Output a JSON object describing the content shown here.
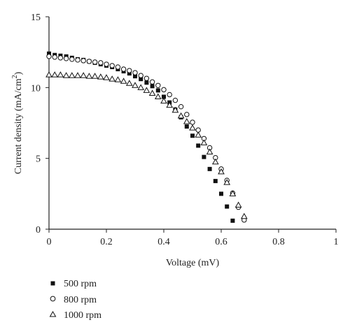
{
  "chart_data": {
    "type": "scatter",
    "xlabel": "Voltage (mV)",
    "ylabel": "Current density (mA/cm",
    "ylabel_sup": "2",
    "ylabel_close": ")",
    "xlim": [
      0,
      1
    ],
    "ylim": [
      0,
      15
    ],
    "xticks": [
      "0",
      "0.2",
      "0.4",
      "0.6",
      "0.8",
      "1"
    ],
    "xtick_values": [
      0,
      0.2,
      0.4,
      0.6,
      0.8,
      1
    ],
    "yticks": [
      "0",
      "5",
      "10",
      "15"
    ],
    "ytick_values": [
      0,
      5,
      10,
      15
    ],
    "grid": false,
    "legend_position": "bottom-left",
    "series": [
      {
        "name": "500 rpm",
        "marker": "filled-square",
        "points": [
          [
            0.0,
            12.4
          ],
          [
            0.02,
            12.3
          ],
          [
            0.04,
            12.25
          ],
          [
            0.06,
            12.2
          ],
          [
            0.08,
            12.1
          ],
          [
            0.1,
            12.0
          ],
          [
            0.12,
            11.95
          ],
          [
            0.14,
            11.85
          ],
          [
            0.16,
            11.75
          ],
          [
            0.18,
            11.65
          ],
          [
            0.2,
            11.55
          ],
          [
            0.22,
            11.45
          ],
          [
            0.24,
            11.3
          ],
          [
            0.26,
            11.15
          ],
          [
            0.28,
            11.0
          ],
          [
            0.3,
            10.8
          ],
          [
            0.32,
            10.6
          ],
          [
            0.34,
            10.35
          ],
          [
            0.36,
            10.1
          ],
          [
            0.38,
            9.8
          ],
          [
            0.4,
            9.35
          ],
          [
            0.42,
            8.95
          ],
          [
            0.44,
            8.45
          ],
          [
            0.46,
            7.9
          ],
          [
            0.48,
            7.25
          ],
          [
            0.5,
            6.6
          ],
          [
            0.52,
            5.9
          ],
          [
            0.54,
            5.1
          ],
          [
            0.56,
            4.25
          ],
          [
            0.58,
            3.4
          ],
          [
            0.6,
            2.5
          ],
          [
            0.62,
            1.6
          ],
          [
            0.64,
            0.6
          ]
        ]
      },
      {
        "name": "800 rpm",
        "marker": "open-circle",
        "points": [
          [
            0.0,
            12.2
          ],
          [
            0.02,
            12.15
          ],
          [
            0.04,
            12.1
          ],
          [
            0.06,
            12.05
          ],
          [
            0.08,
            12.0
          ],
          [
            0.1,
            11.95
          ],
          [
            0.12,
            11.9
          ],
          [
            0.14,
            11.85
          ],
          [
            0.16,
            11.8
          ],
          [
            0.18,
            11.75
          ],
          [
            0.2,
            11.65
          ],
          [
            0.22,
            11.55
          ],
          [
            0.24,
            11.45
          ],
          [
            0.26,
            11.3
          ],
          [
            0.28,
            11.2
          ],
          [
            0.3,
            11.05
          ],
          [
            0.32,
            10.85
          ],
          [
            0.34,
            10.65
          ],
          [
            0.36,
            10.4
          ],
          [
            0.38,
            10.15
          ],
          [
            0.4,
            9.85
          ],
          [
            0.42,
            9.5
          ],
          [
            0.44,
            9.1
          ],
          [
            0.46,
            8.65
          ],
          [
            0.48,
            8.1
          ],
          [
            0.5,
            7.55
          ],
          [
            0.52,
            7.0
          ],
          [
            0.54,
            6.4
          ],
          [
            0.56,
            5.75
          ],
          [
            0.58,
            5.05
          ],
          [
            0.6,
            4.25
          ],
          [
            0.62,
            3.45
          ],
          [
            0.64,
            2.55
          ],
          [
            0.66,
            1.55
          ],
          [
            0.68,
            0.65
          ]
        ]
      },
      {
        "name": "1000 rpm",
        "marker": "open-triangle",
        "points": [
          [
            0.0,
            10.9
          ],
          [
            0.02,
            10.9
          ],
          [
            0.04,
            10.9
          ],
          [
            0.06,
            10.85
          ],
          [
            0.08,
            10.85
          ],
          [
            0.1,
            10.85
          ],
          [
            0.12,
            10.85
          ],
          [
            0.14,
            10.8
          ],
          [
            0.16,
            10.8
          ],
          [
            0.18,
            10.75
          ],
          [
            0.2,
            10.7
          ],
          [
            0.22,
            10.6
          ],
          [
            0.24,
            10.55
          ],
          [
            0.26,
            10.45
          ],
          [
            0.28,
            10.3
          ],
          [
            0.3,
            10.15
          ],
          [
            0.32,
            10.0
          ],
          [
            0.34,
            9.8
          ],
          [
            0.36,
            9.6
          ],
          [
            0.38,
            9.35
          ],
          [
            0.4,
            9.05
          ],
          [
            0.42,
            8.75
          ],
          [
            0.44,
            8.4
          ],
          [
            0.46,
            8.0
          ],
          [
            0.48,
            7.6
          ],
          [
            0.5,
            7.15
          ],
          [
            0.52,
            6.65
          ],
          [
            0.54,
            6.1
          ],
          [
            0.56,
            5.45
          ],
          [
            0.58,
            4.75
          ],
          [
            0.6,
            4.05
          ],
          [
            0.62,
            3.3
          ],
          [
            0.64,
            2.5
          ],
          [
            0.66,
            1.7
          ],
          [
            0.68,
            0.9
          ]
        ]
      }
    ]
  }
}
